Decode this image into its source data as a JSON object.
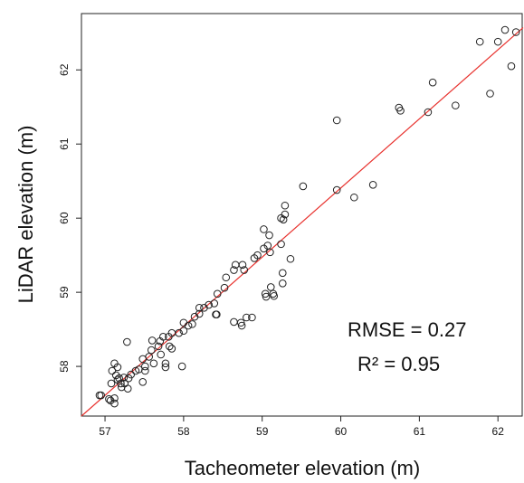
{
  "chart_data": {
    "type": "scatter",
    "xlabel": "Tacheometer elevation (m)",
    "ylabel": "LiDAR elevation (m)",
    "annotations": [
      "RMSE = 0.27",
      "R² = 0.95"
    ],
    "xlim": [
      56.7,
      62.32
    ],
    "ylim": [
      57.33,
      62.76
    ],
    "xticks": [
      57,
      58,
      59,
      60,
      61,
      62
    ],
    "yticks": [
      58,
      59,
      60,
      61,
      62
    ],
    "grid": false,
    "fit_line": {
      "color": "#e8322e",
      "x": [
        56.7,
        62.32
      ],
      "y": [
        57.33,
        62.57
      ]
    },
    "series": [
      {
        "color": "#222222",
        "x": [
          61.77,
          62.09,
          62.23,
          62.0,
          62.17,
          61.9,
          61.17,
          60.76,
          60.74,
          61.11,
          61.46,
          59.95,
          59.95,
          60.41,
          60.17,
          59.52,
          59.29,
          59.29,
          59.27,
          59.24,
          59.02,
          59.09,
          59.07,
          59.02,
          59.1,
          59.24,
          58.9,
          58.94,
          59.36,
          59.26,
          59.26,
          59.11,
          59.04,
          59.05,
          59.15,
          59.14,
          58.87,
          58.75,
          58.77,
          58.66,
          58.64,
          58.54,
          58.52,
          58.43,
          58.39,
          58.32,
          58.26,
          58.2,
          58.2,
          58.14,
          58.11,
          58.06,
          58.0,
          58.41,
          58.42,
          58.64,
          58.73,
          58.74,
          58.8,
          58.0,
          57.94,
          57.85,
          57.81,
          57.74,
          57.7,
          57.6,
          57.68,
          57.82,
          57.85,
          57.59,
          57.56,
          57.48,
          57.51,
          57.43,
          57.39,
          57.33,
          57.3,
          57.24,
          57.18,
          57.16,
          57.14,
          57.12,
          57.16,
          57.09,
          57.28,
          57.77,
          57.98,
          57.77,
          57.48,
          57.29,
          57.21,
          57.08,
          57.12,
          57.05,
          56.95,
          56.93,
          57.07,
          57.12,
          57.51,
          57.62,
          57.71,
          57.25,
          57.2
        ],
        "values": [
          62.38,
          62.54,
          62.51,
          62.38,
          62.05,
          61.68,
          61.83,
          61.45,
          61.49,
          61.43,
          61.52,
          61.32,
          60.38,
          60.45,
          60.28,
          60.43,
          60.17,
          60.05,
          59.98,
          60.0,
          59.85,
          59.77,
          59.63,
          59.59,
          59.54,
          59.65,
          59.46,
          59.5,
          59.45,
          59.26,
          59.12,
          59.07,
          58.98,
          58.94,
          58.95,
          58.98,
          58.66,
          59.37,
          59.3,
          59.37,
          59.3,
          59.2,
          59.06,
          58.98,
          58.85,
          58.83,
          58.79,
          58.79,
          58.71,
          58.67,
          58.57,
          58.55,
          58.59,
          58.7,
          58.7,
          58.6,
          58.59,
          58.55,
          58.66,
          58.48,
          58.45,
          58.45,
          58.4,
          58.4,
          58.34,
          58.35,
          58.27,
          58.27,
          58.24,
          58.22,
          58.13,
          58.1,
          58.0,
          57.96,
          57.94,
          57.89,
          57.84,
          57.85,
          57.84,
          57.82,
          57.88,
          58.04,
          57.99,
          57.94,
          58.33,
          58.04,
          58.0,
          57.99,
          57.79,
          57.7,
          57.72,
          57.77,
          57.57,
          57.56,
          57.61,
          57.61,
          57.54,
          57.5,
          57.94,
          58.04,
          58.16,
          57.77,
          57.77
        ]
      }
    ]
  }
}
